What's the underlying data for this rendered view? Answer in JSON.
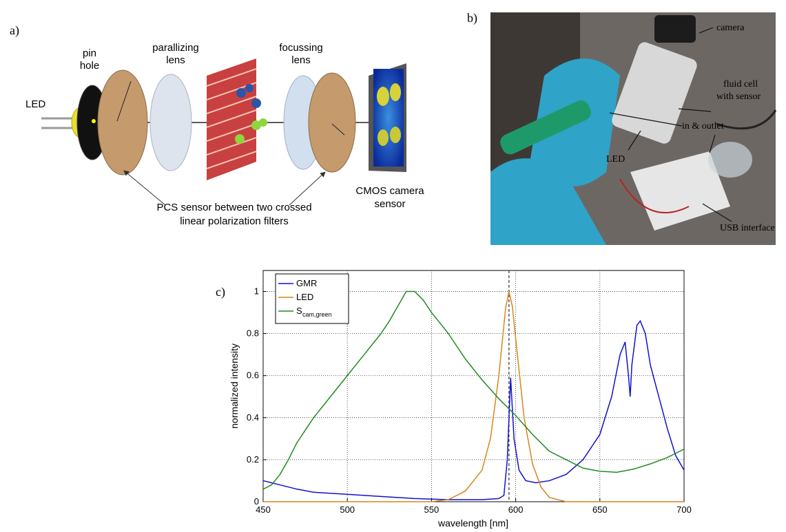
{
  "figure": {
    "panel_labels": [
      "a)",
      "b)",
      "c)"
    ]
  },
  "diagram": {
    "led": "LED",
    "pin_hole": [
      "pin",
      "hole"
    ],
    "parallizing_lens": [
      "parallizing",
      "lens"
    ],
    "focussing_lens": [
      "focussing",
      "lens"
    ],
    "cmos": [
      "CMOS camera",
      "sensor"
    ],
    "pcs": [
      "PCS sensor between two crossed",
      "linear polarization filters"
    ]
  },
  "photo": {
    "camera": "camera",
    "fluid_cell": [
      "fluid cell",
      "with sensor"
    ],
    "in_outlet": "in & outlet",
    "led": "LED",
    "usb": "USB interface"
  },
  "chart_data": {
    "type": "line",
    "xlabel": "wavelength [nm]",
    "ylabel": "normalized intensity",
    "xlim": [
      450,
      700
    ],
    "ylim": [
      0,
      1.1
    ],
    "xticks": [
      450,
      500,
      550,
      600,
      650,
      700
    ],
    "yticks": [
      0,
      0.2,
      0.4,
      0.6,
      0.8,
      1
    ],
    "grid": true,
    "legend": "top-left",
    "vline": 596,
    "series": [
      {
        "name": "GMR",
        "color": "#1010d0",
        "x": [
          450,
          455,
          460,
          470,
          480,
          490,
          500,
          520,
          540,
          560,
          580,
          590,
          593,
          595,
          597,
          599,
          602,
          606,
          612,
          620,
          630,
          640,
          650,
          657,
          662,
          665,
          667,
          668,
          669,
          672,
          674,
          677,
          680,
          685,
          690,
          695,
          700
        ],
        "values": [
          0.1,
          0.09,
          0.08,
          0.06,
          0.045,
          0.04,
          0.035,
          0.025,
          0.015,
          0.01,
          0.01,
          0.015,
          0.03,
          0.2,
          0.59,
          0.3,
          0.15,
          0.1,
          0.09,
          0.1,
          0.13,
          0.2,
          0.32,
          0.5,
          0.7,
          0.76,
          0.6,
          0.5,
          0.65,
          0.84,
          0.86,
          0.8,
          0.65,
          0.5,
          0.35,
          0.22,
          0.15
        ]
      },
      {
        "name": "LED",
        "color": "#d9841a",
        "x": [
          450,
          550,
          560,
          570,
          580,
          585,
          590,
          594,
          596,
          598,
          601,
          605,
          610,
          615,
          620,
          630,
          700
        ],
        "values": [
          0,
          0,
          0.01,
          0.05,
          0.15,
          0.3,
          0.6,
          0.92,
          1.0,
          0.93,
          0.7,
          0.4,
          0.18,
          0.07,
          0.02,
          0,
          0
        ]
      },
      {
        "name": "S",
        "subscript": "cam,green",
        "color": "#1f8a1f",
        "x": [
          450,
          455,
          460,
          465,
          470,
          480,
          490,
          500,
          510,
          520,
          525,
          530,
          535,
          540,
          545,
          550,
          560,
          570,
          580,
          590,
          600,
          610,
          620,
          630,
          640,
          650,
          660,
          670,
          680,
          690,
          700
        ],
        "values": [
          0.06,
          0.08,
          0.13,
          0.2,
          0.28,
          0.4,
          0.5,
          0.6,
          0.7,
          0.8,
          0.86,
          0.93,
          1.0,
          1.0,
          0.96,
          0.9,
          0.8,
          0.68,
          0.58,
          0.49,
          0.41,
          0.32,
          0.24,
          0.2,
          0.16,
          0.145,
          0.14,
          0.155,
          0.18,
          0.21,
          0.25
        ]
      }
    ]
  }
}
